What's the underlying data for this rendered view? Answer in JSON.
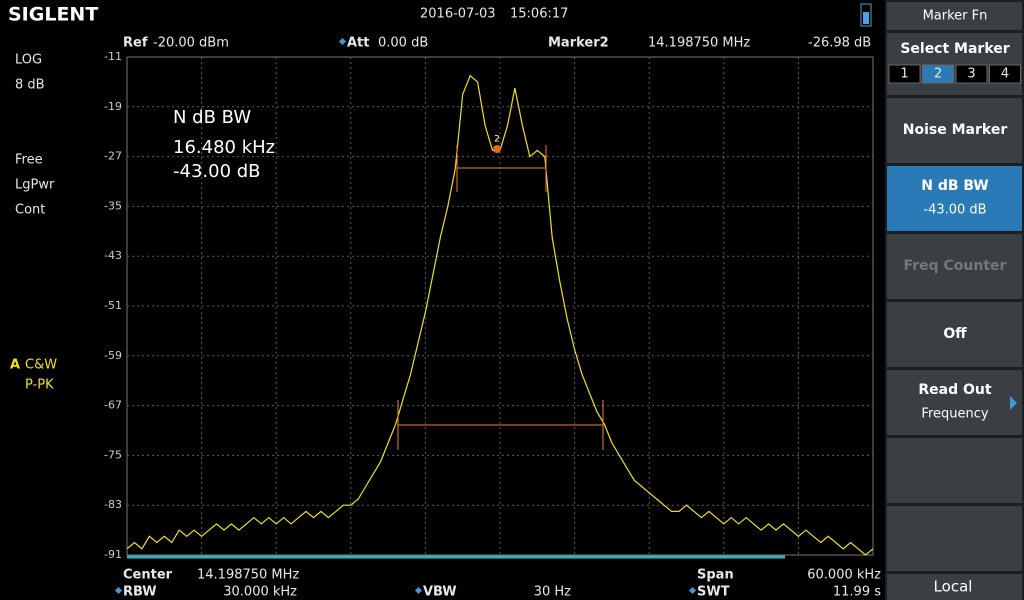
{
  "header": {
    "brand": "SIGLENT",
    "date": "2016-07-03",
    "time": "15:06:17"
  },
  "status": {
    "ref_label": "Ref",
    "ref_value": "-20.00 dBm",
    "att_label": "Att",
    "att_value": "0.00 dB",
    "marker_label": "Marker2",
    "marker_freq": "14.198750 MHz",
    "marker_level": "-26.98 dB"
  },
  "left_panel": {
    "scale_type": "LOG",
    "scale_div": "8 dB",
    "trigger": "Free",
    "avg_type": "LgPwr",
    "sweep": "Cont",
    "trace_id": "A",
    "trace_mode": "C&W",
    "detector": "P-PK"
  },
  "annotation": {
    "title": "N dB BW",
    "bandwidth": "16.480 kHz",
    "n_db": "-43.00 dB",
    "marker_id": "2"
  },
  "footer": {
    "center_label": "Center",
    "center_value": "14.198750 MHz",
    "span_label": "Span",
    "span_value": "60.000 kHz",
    "rbw_label": "RBW",
    "rbw_value": "30.000 kHz",
    "vbw_label": "VBW",
    "vbw_value": "30 Hz",
    "swt_label": "SWT",
    "swt_value": "11.99 s"
  },
  "menu": {
    "title": "Marker Fn",
    "select_label": "Select Marker",
    "markers": [
      "1",
      "2",
      "3",
      "4"
    ],
    "noise_marker": "Noise Marker",
    "ndb_label": "N dB BW",
    "ndb_value": "-43.00 dB",
    "freq_counter": "Freq Counter",
    "off": "Off",
    "readout_label": "Read Out",
    "readout_value": "Frequency",
    "local": "Local"
  },
  "chart_data": {
    "type": "line",
    "color": "#f0e020",
    "ylim": [
      -91,
      -11
    ],
    "yticks": [
      -11,
      -19,
      -27,
      -35,
      -43,
      -51,
      -59,
      -67,
      -75,
      -83,
      -91
    ],
    "grid": true,
    "values": [
      -90,
      -89,
      -90,
      -88,
      -89,
      -88,
      -89,
      -87,
      -88,
      -87,
      -88,
      -87,
      -86,
      -87,
      -86,
      -87,
      -86,
      -85,
      -86,
      -85,
      -86,
      -85,
      -86,
      -85,
      -84,
      -85,
      -84,
      -85,
      -84,
      -83,
      -83,
      -82,
      -80,
      -78,
      -76,
      -73,
      -70,
      -66,
      -62,
      -57,
      -52,
      -46,
      -40,
      -35,
      -29,
      -17,
      -14,
      -15,
      -22,
      -26,
      -26,
      -22,
      -16,
      -22,
      -27,
      -26,
      -27,
      -40,
      -47,
      -53,
      -58,
      -62,
      -65,
      -68,
      -70,
      -73,
      -75,
      -77,
      -79,
      -80,
      -81,
      -82,
      -83,
      -84,
      -84,
      -83,
      -84,
      -85,
      -84,
      -85,
      -86,
      -85,
      -86,
      -85,
      -86,
      -87,
      -86,
      -87,
      -86,
      -87,
      -88,
      -87,
      -88,
      -89,
      -88,
      -89,
      -90,
      -89,
      -90,
      -91,
      -90
    ]
  }
}
